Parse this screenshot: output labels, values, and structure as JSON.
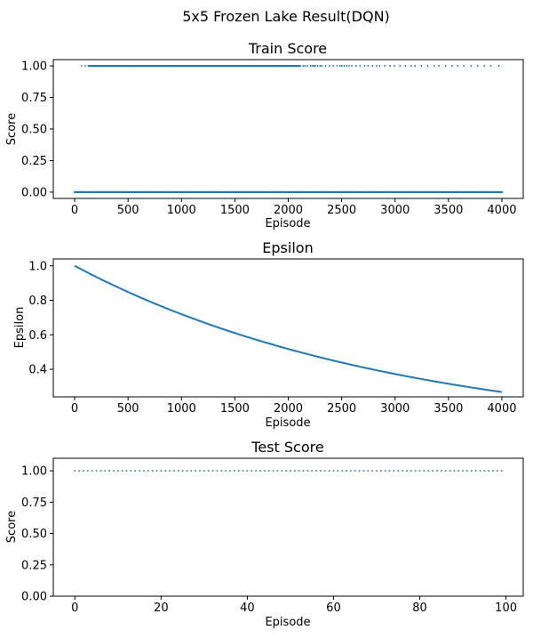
{
  "figure": {
    "suptitle": "5x5 Frozen Lake Result(DQN)"
  },
  "chart_data": [
    {
      "type": "scatter",
      "title": "Train Score",
      "xlabel": "Episode",
      "ylabel": "Score",
      "xlim": [
        -200,
        4200
      ],
      "ylim": [
        -0.05,
        1.05
      ],
      "xticks": [
        0,
        500,
        1000,
        1500,
        2000,
        2500,
        3000,
        3500,
        4000
      ],
      "xtick_labels": [
        "0",
        "500",
        "1000",
        "1500",
        "2000",
        "2500",
        "3000",
        "3500",
        "4000"
      ],
      "yticks": [
        0.0,
        0.25,
        0.5,
        0.75,
        1.0
      ],
      "ytick_labels": [
        "0.00",
        "0.25",
        "0.50",
        "0.75",
        "1.00"
      ],
      "grid": false,
      "color": "#1f77b4",
      "series": [
        {
          "x_range": [
            0,
            4000
          ],
          "y_value": 0.0,
          "density": "dense"
        },
        {
          "x_range": [
            60,
            4000
          ],
          "y_value": 1.0,
          "density": "dense from ~130 to ~2100, sparse afterwards"
        }
      ]
    },
    {
      "type": "line",
      "title": "Epsilon",
      "xlabel": "Episode",
      "ylabel": "Epsilon",
      "xlim": [
        -200,
        4200
      ],
      "ylim": [
        0.24,
        1.04
      ],
      "xticks": [
        0,
        500,
        1000,
        1500,
        2000,
        2500,
        3000,
        3500,
        4000
      ],
      "xtick_labels": [
        "0",
        "500",
        "1000",
        "1500",
        "2000",
        "2500",
        "3000",
        "3500",
        "4000"
      ],
      "yticks": [
        0.4,
        0.6,
        0.8,
        1.0
      ],
      "ytick_labels": [
        "0.4",
        "0.6",
        "0.8",
        "1.0"
      ],
      "grid": false,
      "color": "#1f77b4",
      "x": [
        0,
        500,
        1000,
        1500,
        2000,
        2500,
        3000,
        3500,
        4000
      ],
      "y": [
        1.0,
        0.848,
        0.718,
        0.609,
        0.517,
        0.439,
        0.372,
        0.316,
        0.268
      ]
    },
    {
      "type": "scatter",
      "title": "Test Score",
      "xlabel": "Episode",
      "ylabel": "Score",
      "xlim": [
        -5,
        104
      ],
      "ylim": [
        0.0,
        1.1
      ],
      "xticks": [
        0,
        20,
        40,
        60,
        80,
        100
      ],
      "xtick_labels": [
        "0",
        "20",
        "40",
        "60",
        "80",
        "100"
      ],
      "yticks": [
        0.0,
        0.25,
        0.5,
        0.75,
        1.0
      ],
      "ytick_labels": [
        "0.00",
        "0.25",
        "0.50",
        "0.75",
        "1.00"
      ],
      "grid": false,
      "color": "#1f77b4",
      "x_range": [
        0,
        99
      ],
      "y_value": 1.0
    }
  ]
}
